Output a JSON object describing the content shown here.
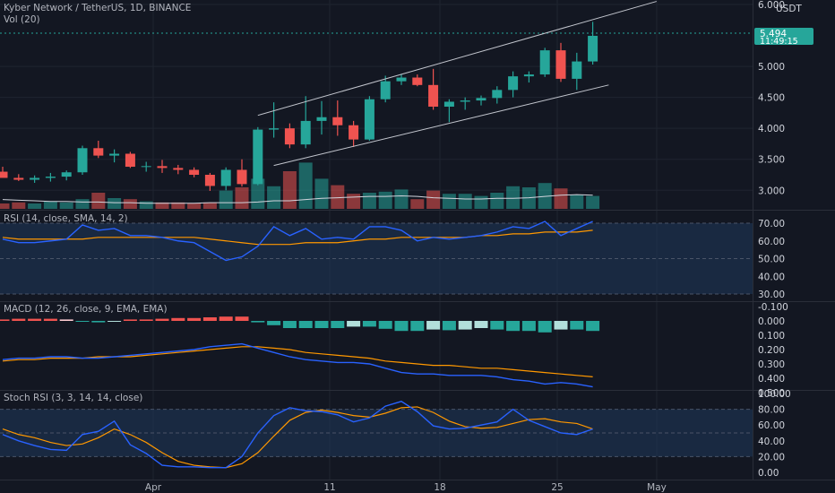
{
  "header": {
    "symbol_title": "Kyber Network / TetherUS, 1D, BINANCE",
    "volume_label": "Vol (20)",
    "currency": "USDT"
  },
  "price_badge": {
    "price": "5.494",
    "countdown": "11:49:15",
    "color": "#26a69a"
  },
  "panes": {
    "rsi_label": "RSI (14, close, SMA, 14, 2)",
    "macd_label": "MACD (12, 26, close, 9, EMA, EMA)",
    "stoch_label": "Stoch RSI (3, 3, 14, 14, close)"
  },
  "colors": {
    "background": "#131722",
    "up": "#26a69a",
    "down": "#ef5350",
    "rsi_line": "#2962ff",
    "signal_line": "#ff9800"
  },
  "chart_data": [
    {
      "type": "candlestick",
      "title": "Kyber Network / TetherUS, 1D, BINANCE",
      "ylim": [
        2.7,
        6.0
      ],
      "y_ticks": [
        "6.000",
        "5.000",
        "4.500",
        "4.000",
        "3.500",
        "3.000"
      ],
      "x_ticks": [
        "Apr",
        "11",
        "18",
        "25",
        "May"
      ],
      "candles": [
        {
          "o": 3.3,
          "h": 3.38,
          "l": 3.22,
          "c": 3.2
        },
        {
          "o": 3.2,
          "h": 3.26,
          "l": 3.15,
          "c": 3.17
        },
        {
          "o": 3.17,
          "h": 3.24,
          "l": 3.12,
          "c": 3.2
        },
        {
          "o": 3.2,
          "h": 3.28,
          "l": 3.14,
          "c": 3.22
        },
        {
          "o": 3.22,
          "h": 3.32,
          "l": 3.16,
          "c": 3.29
        },
        {
          "o": 3.29,
          "h": 3.72,
          "l": 3.25,
          "c": 3.68
        },
        {
          "o": 3.68,
          "h": 3.8,
          "l": 3.52,
          "c": 3.56
        },
        {
          "o": 3.56,
          "h": 3.66,
          "l": 3.45,
          "c": 3.59
        },
        {
          "o": 3.59,
          "h": 3.62,
          "l": 3.36,
          "c": 3.38
        },
        {
          "o": 3.38,
          "h": 3.46,
          "l": 3.3,
          "c": 3.39
        },
        {
          "o": 3.39,
          "h": 3.49,
          "l": 3.28,
          "c": 3.36
        },
        {
          "o": 3.36,
          "h": 3.41,
          "l": 3.26,
          "c": 3.33
        },
        {
          "o": 3.33,
          "h": 3.37,
          "l": 3.21,
          "c": 3.25
        },
        {
          "o": 3.25,
          "h": 3.28,
          "l": 2.99,
          "c": 3.07
        },
        {
          "o": 3.07,
          "h": 3.37,
          "l": 3.0,
          "c": 3.33
        },
        {
          "o": 3.33,
          "h": 3.5,
          "l": 3.06,
          "c": 3.1
        },
        {
          "o": 3.1,
          "h": 4.02,
          "l": 3.08,
          "c": 3.98
        },
        {
          "o": 3.98,
          "h": 4.42,
          "l": 3.85,
          "c": 4.0
        },
        {
          "o": 4.0,
          "h": 4.08,
          "l": 3.68,
          "c": 3.74
        },
        {
          "o": 3.74,
          "h": 4.52,
          "l": 3.68,
          "c": 4.12
        },
        {
          "o": 4.12,
          "h": 4.44,
          "l": 3.9,
          "c": 4.18
        },
        {
          "o": 4.18,
          "h": 4.45,
          "l": 3.88,
          "c": 4.05
        },
        {
          "o": 4.05,
          "h": 4.12,
          "l": 3.7,
          "c": 3.82
        },
        {
          "o": 3.82,
          "h": 4.52,
          "l": 3.8,
          "c": 4.47
        },
        {
          "o": 4.47,
          "h": 4.85,
          "l": 4.42,
          "c": 4.76
        },
        {
          "o": 4.76,
          "h": 4.88,
          "l": 4.7,
          "c": 4.82
        },
        {
          "o": 4.82,
          "h": 4.87,
          "l": 4.68,
          "c": 4.7
        },
        {
          "o": 4.7,
          "h": 4.96,
          "l": 4.3,
          "c": 4.35
        },
        {
          "o": 4.35,
          "h": 4.47,
          "l": 4.1,
          "c": 4.43
        },
        {
          "o": 4.43,
          "h": 4.5,
          "l": 4.3,
          "c": 4.45
        },
        {
          "o": 4.45,
          "h": 4.53,
          "l": 4.37,
          "c": 4.49
        },
        {
          "o": 4.49,
          "h": 4.68,
          "l": 4.4,
          "c": 4.62
        },
        {
          "o": 4.62,
          "h": 4.92,
          "l": 4.5,
          "c": 4.84
        },
        {
          "o": 4.84,
          "h": 4.92,
          "l": 4.74,
          "c": 4.87
        },
        {
          "o": 4.87,
          "h": 5.3,
          "l": 4.83,
          "c": 5.26
        },
        {
          "o": 5.26,
          "h": 5.38,
          "l": 4.75,
          "c": 4.8
        },
        {
          "o": 4.8,
          "h": 5.22,
          "l": 4.62,
          "c": 5.08
        },
        {
          "o": 5.08,
          "h": 5.72,
          "l": 5.03,
          "c": 5.494
        }
      ],
      "volume": [
        0.05,
        0.06,
        0.05,
        0.07,
        0.06,
        0.09,
        0.15,
        0.1,
        0.09,
        0.07,
        0.06,
        0.06,
        0.05,
        0.06,
        0.17,
        0.2,
        0.28,
        0.21,
        0.35,
        0.43,
        0.28,
        0.22,
        0.14,
        0.15,
        0.16,
        0.18,
        0.09,
        0.17,
        0.14,
        0.14,
        0.12,
        0.15,
        0.21,
        0.2,
        0.24,
        0.19,
        0.13,
        0.12
      ],
      "volume_ma": [
        2.85,
        2.84,
        2.83,
        2.82,
        2.82,
        2.81,
        2.81,
        2.8,
        2.8,
        2.79,
        2.79,
        2.79,
        2.79,
        2.8,
        2.8,
        2.8,
        2.81,
        2.83,
        2.83,
        2.85,
        2.87,
        2.88,
        2.89,
        2.9,
        2.9,
        2.91,
        2.9,
        2.88,
        2.87,
        2.86,
        2.86,
        2.87,
        2.87,
        2.88,
        2.9,
        2.92,
        2.93,
        2.92
      ],
      "trend_channel": {
        "upper": [
          [
            16,
            4.21
          ],
          [
            41,
            6.05
          ]
        ],
        "lower": [
          [
            17,
            3.4
          ],
          [
            38,
            4.7
          ]
        ]
      }
    },
    {
      "type": "line",
      "title": "RSI (14, close, SMA, 14, 2)",
      "ylim": [
        30,
        70
      ],
      "y_ticks": [
        "70.00",
        "60.00",
        "50.00",
        "40.00",
        "30.00"
      ],
      "bands": [
        30,
        70
      ],
      "series": [
        {
          "name": "RSI",
          "values": [
            61,
            59,
            59,
            60,
            61,
            69,
            66,
            67,
            63,
            63,
            62,
            60,
            59,
            54,
            49,
            51,
            57,
            68,
            63,
            67,
            61,
            62,
            61,
            68,
            68,
            66,
            60,
            62,
            61,
            62,
            63,
            65,
            68,
            67,
            71,
            63,
            67,
            71
          ]
        },
        {
          "name": "SMA",
          "values": [
            62,
            61,
            61,
            61,
            61,
            61,
            62,
            62,
            62,
            62,
            62,
            62,
            62,
            61,
            60,
            59,
            58,
            58,
            58,
            59,
            59,
            59,
            60,
            61,
            61,
            62,
            62,
            62,
            62,
            62,
            63,
            63,
            64,
            64,
            65,
            65,
            65,
            66
          ]
        }
      ]
    },
    {
      "type": "line",
      "title": "MACD (12, 26, close, 9, EMA, EMA)",
      "ylim": [
        -0.1,
        0.5
      ],
      "y_ticks": [
        "0.500",
        "0.400",
        "0.300",
        "0.200",
        "0.100",
        "0.000",
        "-0.100"
      ],
      "series": [
        {
          "name": "MACD",
          "values": [
            0.27,
            0.26,
            0.26,
            0.25,
            0.25,
            0.26,
            0.26,
            0.25,
            0.24,
            0.23,
            0.22,
            0.21,
            0.2,
            0.18,
            0.17,
            0.16,
            0.19,
            0.22,
            0.25,
            0.27,
            0.28,
            0.29,
            0.29,
            0.3,
            0.33,
            0.36,
            0.37,
            0.37,
            0.38,
            0.38,
            0.38,
            0.39,
            0.41,
            0.42,
            0.44,
            0.43,
            0.44,
            0.46
          ]
        },
        {
          "name": "Signal",
          "values": [
            0.28,
            0.27,
            0.27,
            0.26,
            0.26,
            0.26,
            0.25,
            0.25,
            0.25,
            0.24,
            0.23,
            0.22,
            0.21,
            0.2,
            0.19,
            0.18,
            0.18,
            0.19,
            0.2,
            0.22,
            0.23,
            0.24,
            0.25,
            0.26,
            0.28,
            0.29,
            0.3,
            0.31,
            0.31,
            0.32,
            0.33,
            0.33,
            0.34,
            0.35,
            0.36,
            0.37,
            0.38,
            0.39
          ]
        },
        {
          "name": "Histogram",
          "values": [
            -0.01,
            -0.015,
            -0.015,
            -0.015,
            -0.01,
            0.0,
            0.01,
            0.0,
            -0.01,
            -0.01,
            -0.015,
            -0.02,
            -0.02,
            -0.025,
            -0.03,
            -0.03,
            0.01,
            0.03,
            0.05,
            0.05,
            0.05,
            0.05,
            0.04,
            0.04,
            0.055,
            0.07,
            0.07,
            0.06,
            0.065,
            0.06,
            0.05,
            0.06,
            0.07,
            0.07,
            0.08,
            0.06,
            0.06,
            0.07
          ]
        }
      ]
    },
    {
      "type": "line",
      "title": "Stoch RSI (3, 3, 14, 14, close)",
      "ylim": [
        0,
        100
      ],
      "y_ticks": [
        "100.00",
        "80.00",
        "60.00",
        "40.00",
        "20.00",
        "0.00"
      ],
      "bands": [
        20,
        80
      ],
      "series": [
        {
          "name": "K",
          "values": [
            48,
            40,
            34,
            29,
            28,
            48,
            52,
            65,
            35,
            24,
            9,
            7,
            7,
            6,
            6,
            20,
            50,
            72,
            82,
            78,
            77,
            73,
            64,
            69,
            84,
            90,
            77,
            59,
            55,
            56,
            60,
            64,
            80,
            66,
            58,
            50,
            48,
            55
          ]
        },
        {
          "name": "D",
          "values": [
            55,
            48,
            44,
            38,
            34,
            36,
            44,
            55,
            48,
            38,
            25,
            14,
            9,
            7,
            6,
            11,
            25,
            46,
            66,
            76,
            79,
            76,
            72,
            70,
            75,
            82,
            83,
            76,
            65,
            58,
            56,
            57,
            62,
            67,
            68,
            64,
            62,
            55
          ]
        }
      ]
    }
  ]
}
